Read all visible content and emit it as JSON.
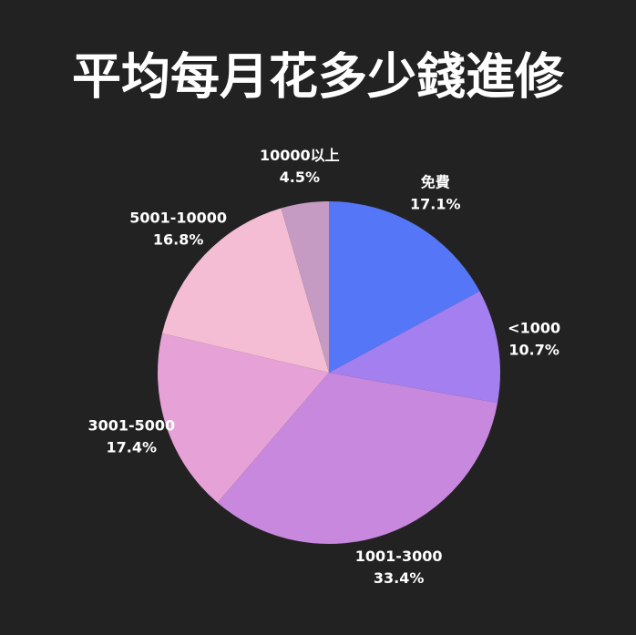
{
  "chart_data": {
    "type": "pie",
    "title": "平均每月花多少錢進修",
    "categories": [
      "免費",
      "<1000",
      "1001-3000",
      "3001-5000",
      "5001-10000",
      "10000以上"
    ],
    "values": [
      17.1,
      10.7,
      33.4,
      17.4,
      16.8,
      4.5
    ],
    "value_labels": [
      "17.1%",
      "10.7%",
      "33.4%",
      "17.4%",
      "16.8%",
      "4.5%"
    ],
    "colors": [
      "#5577f7",
      "#a47ff0",
      "#c888dd",
      "#e6a1d7",
      "#f5bdd4",
      "#c59bc3"
    ]
  }
}
